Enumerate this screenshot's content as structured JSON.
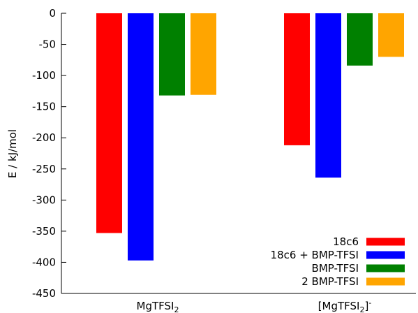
{
  "chart_data": {
    "type": "bar",
    "ylabel": "E / kJ/mol",
    "ylim": [
      -450,
      0
    ],
    "yticks": [
      0,
      -50,
      -100,
      -150,
      -200,
      -250,
      -300,
      -350,
      -400,
      -450
    ],
    "categories": [
      {
        "base": "MgTFSI",
        "sub": "2",
        "prefix": "",
        "sup": ""
      },
      {
        "base": "MgTFSI",
        "sub": "2",
        "prefix": "[",
        "close": "]",
        "sup": "-"
      }
    ],
    "series": [
      {
        "name": "18c6",
        "color": "#ff0000",
        "values": [
          -353,
          -212
        ]
      },
      {
        "name": "18c6 + BMP-TFSI",
        "color": "#0000ff",
        "values": [
          -397,
          -264
        ]
      },
      {
        "name": "BMP-TFSI",
        "color": "#008000",
        "values": [
          -132,
          -84
        ]
      },
      {
        "name": "2 BMP-TFSI",
        "color": "#ffa500",
        "values": [
          -131,
          -70
        ]
      }
    ],
    "legend_position": "bottom-right",
    "grid": false
  }
}
